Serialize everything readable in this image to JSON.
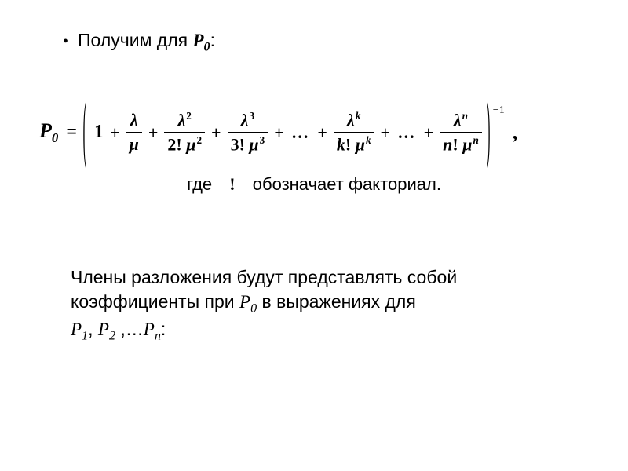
{
  "colors": {
    "bg": "#ffffff",
    "fg": "#000000"
  },
  "typography": {
    "body_font": "Arial, sans-serif",
    "math_font": "Times New Roman, serif",
    "body_size_pt": 17,
    "eq_size_pt": 18
  },
  "bullet": {
    "marker": "•",
    "text_pre": "Получим для ",
    "var": "P",
    "var_sub": "0",
    "text_post": ":"
  },
  "equation": {
    "lhs_var": "P",
    "lhs_sub": "0",
    "eq": "=",
    "paren_open": "(",
    "paren_close": ")",
    "first_term": "1",
    "op_plus": "+",
    "op_dots": "...",
    "lambda": "λ",
    "mu": "μ",
    "excl": "!",
    "terms": [
      {
        "num_exp": "",
        "den_coeff": "",
        "den_exp": ""
      },
      {
        "num_exp": "2",
        "den_coeff": "2",
        "den_exp": "2"
      },
      {
        "num_exp": "3",
        "den_coeff": "3",
        "den_exp": "3"
      }
    ],
    "general_terms": [
      {
        "sym": "k"
      },
      {
        "sym": "n"
      }
    ],
    "outer_exp": "−1",
    "trailing": ","
  },
  "where": {
    "pre": "где",
    "symbol": "!",
    "post": "обозначает факториал."
  },
  "paragraph": {
    "t1": "Члены разложения будут представлять собой коэффициенты при ",
    "p0v": "P",
    "p0s": "0",
    "t2": " в выражениях для",
    "seq": [
      {
        "v": "P",
        "s": "1"
      },
      {
        "v": "P",
        "s": "2"
      },
      {
        "v": "P",
        "s": "n"
      }
    ],
    "sep": ", ",
    "ell": " ,…",
    "end": ":"
  }
}
